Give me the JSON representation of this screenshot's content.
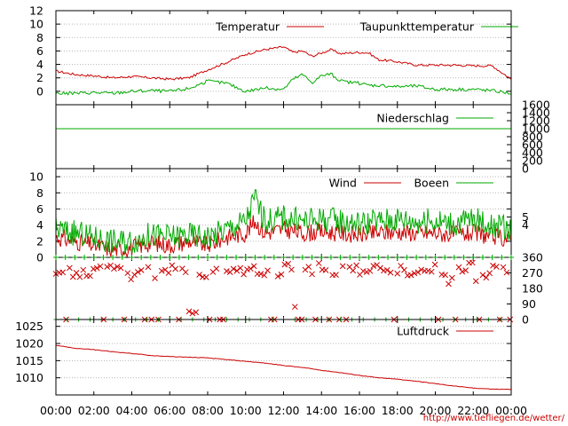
{
  "colors": {
    "red": "#cc0000",
    "green": "#00aa00",
    "frame": "#000000"
  },
  "x_axis_labels": [
    "00:00",
    "02:00",
    "04:00",
    "06:00",
    "08:00",
    "10:00",
    "12:00",
    "14:00",
    "16:00",
    "18:00",
    "20:00",
    "22:00",
    "00:00"
  ],
  "credit": "http://www.tiefliegen.de/wetter/",
  "chart_data": [
    {
      "type": "line",
      "panel": "temperature",
      "legend_position": "top-right",
      "x": [
        0,
        1,
        2,
        3,
        4,
        5,
        6,
        7,
        8,
        9,
        10,
        11,
        12,
        12.5,
        13,
        13.5,
        14,
        14.5,
        15,
        16,
        16.5,
        17,
        18,
        19,
        20,
        21,
        22,
        23,
        24
      ],
      "series": [
        {
          "name": "Temperatur",
          "color": "#cc0000",
          "values": [
            3.0,
            2.5,
            2.3,
            2.0,
            2.2,
            2.0,
            1.8,
            2.0,
            3.2,
            4.3,
            5.5,
            6.2,
            6.6,
            5.8,
            6.0,
            5.2,
            5.7,
            6.2,
            5.6,
            5.8,
            5.7,
            4.7,
            4.4,
            3.9,
            3.9,
            3.9,
            3.8,
            3.8,
            1.8
          ]
        },
        {
          "name": "Taupunkttemperatur",
          "color": "#00aa00",
          "values": [
            -0.3,
            -0.3,
            -0.2,
            -0.3,
            0.0,
            0.1,
            0.0,
            0.4,
            1.5,
            1.2,
            0.0,
            0.5,
            0.3,
            1.8,
            2.5,
            1.3,
            2.3,
            2.6,
            1.5,
            1.2,
            0.9,
            0.9,
            0.7,
            0.8,
            0.3,
            0.3,
            0.3,
            0.1,
            -0.3
          ]
        }
      ],
      "y_ticks": [
        0,
        2,
        4,
        6,
        8,
        10,
        12
      ],
      "ylim": [
        -2,
        12
      ]
    },
    {
      "type": "line",
      "panel": "precipitation",
      "legend_position": "top-right",
      "x": [
        0,
        24
      ],
      "series": [
        {
          "name": "Niederschlag",
          "color": "#00aa00",
          "values": [
            0,
            0
          ]
        }
      ],
      "y_ticks_right": [
        0,
        200,
        400,
        600,
        800,
        1000,
        1200,
        1400,
        1600
      ],
      "ylim": [
        0,
        1600
      ]
    },
    {
      "type": "line",
      "panel": "wind",
      "legend_position": "top-right",
      "x": [
        0,
        1,
        2,
        3,
        4,
        5,
        6,
        7,
        8,
        9,
        10,
        10.5,
        11,
        12,
        13,
        14,
        15,
        16,
        17,
        18,
        19,
        20,
        21,
        22,
        23,
        24
      ],
      "series": [
        {
          "name": "Wind",
          "color": "#cc0000",
          "values": [
            2.5,
            2.0,
            1.5,
            1.0,
            1.2,
            1.8,
            1.5,
            2.0,
            1.5,
            2.5,
            3.0,
            4.5,
            3.0,
            3.5,
            3.0,
            3.2,
            3.0,
            2.8,
            3.0,
            3.2,
            3.0,
            3.0,
            2.8,
            3.0,
            2.6,
            2.2
          ]
        },
        {
          "name": "Boeen",
          "color": "#00aa00",
          "values": [
            3.5,
            3.0,
            2.5,
            2.0,
            2.0,
            2.8,
            2.5,
            2.8,
            2.5,
            3.5,
            4.5,
            7.5,
            4.5,
            5.0,
            4.5,
            4.8,
            4.5,
            4.2,
            4.5,
            4.8,
            4.5,
            4.5,
            4.2,
            4.8,
            4.0,
            3.5
          ]
        }
      ],
      "y_ticks": [
        0,
        2,
        4,
        6,
        8,
        10
      ],
      "y_ticks_right": [
        4,
        5
      ],
      "ylim": [
        0,
        11
      ]
    },
    {
      "type": "scatter",
      "panel": "wind_direction",
      "x": [
        1,
        2,
        3,
        3.5,
        4,
        4.5,
        5,
        5.5,
        6,
        6.5,
        7,
        7.5,
        8,
        8.5,
        9,
        9.5,
        10,
        10.5,
        11,
        11.5,
        12,
        12.5,
        13,
        13.5,
        14,
        14.5,
        15,
        15.5,
        16,
        16.5,
        17,
        17.5,
        18,
        18.5,
        19,
        19.5,
        20,
        20.5,
        21,
        21.5,
        22,
        22.5,
        23,
        23.5
      ],
      "series": [
        {
          "name": "",
          "color": "#cc0000",
          "values": [
            270,
            300,
            280,
            250,
            270,
            300,
            250,
            270,
            300,
            280,
            60,
            270,
            300,
            280,
            300,
            270,
            300,
            250,
            300,
            270,
            300,
            60,
            280,
            300,
            270,
            250,
            280,
            300,
            270,
            300,
            280,
            270,
            300,
            250,
            280,
            300,
            270,
            230,
            280,
            300,
            250,
            270,
            300,
            280
          ]
        }
      ],
      "y_ticks_right": [
        0,
        90,
        180,
        270,
        360
      ],
      "ylim": [
        0,
        360
      ]
    },
    {
      "type": "line",
      "panel": "pressure",
      "legend_position": "top-right",
      "x": [
        0,
        1,
        2,
        3,
        4,
        5,
        6,
        7,
        8,
        9,
        10,
        11,
        12,
        13,
        14,
        15,
        16,
        17,
        18,
        19,
        20,
        21,
        22,
        23,
        24
      ],
      "series": [
        {
          "name": "Luftdruck",
          "color": "#cc0000",
          "values": [
            1019.5,
            1018.6,
            1018.2,
            1017.6,
            1017.1,
            1016.5,
            1016.2,
            1016.0,
            1015.8,
            1015.3,
            1014.8,
            1014.3,
            1013.6,
            1013.0,
            1012.2,
            1011.5,
            1010.7,
            1010.0,
            1009.6,
            1009.0,
            1008.3,
            1007.6,
            1007.0,
            1006.7,
            1006.6
          ]
        }
      ],
      "y_ticks": [
        1010,
        1015,
        1020,
        1025
      ],
      "ylim": [
        1005,
        1027
      ]
    }
  ]
}
